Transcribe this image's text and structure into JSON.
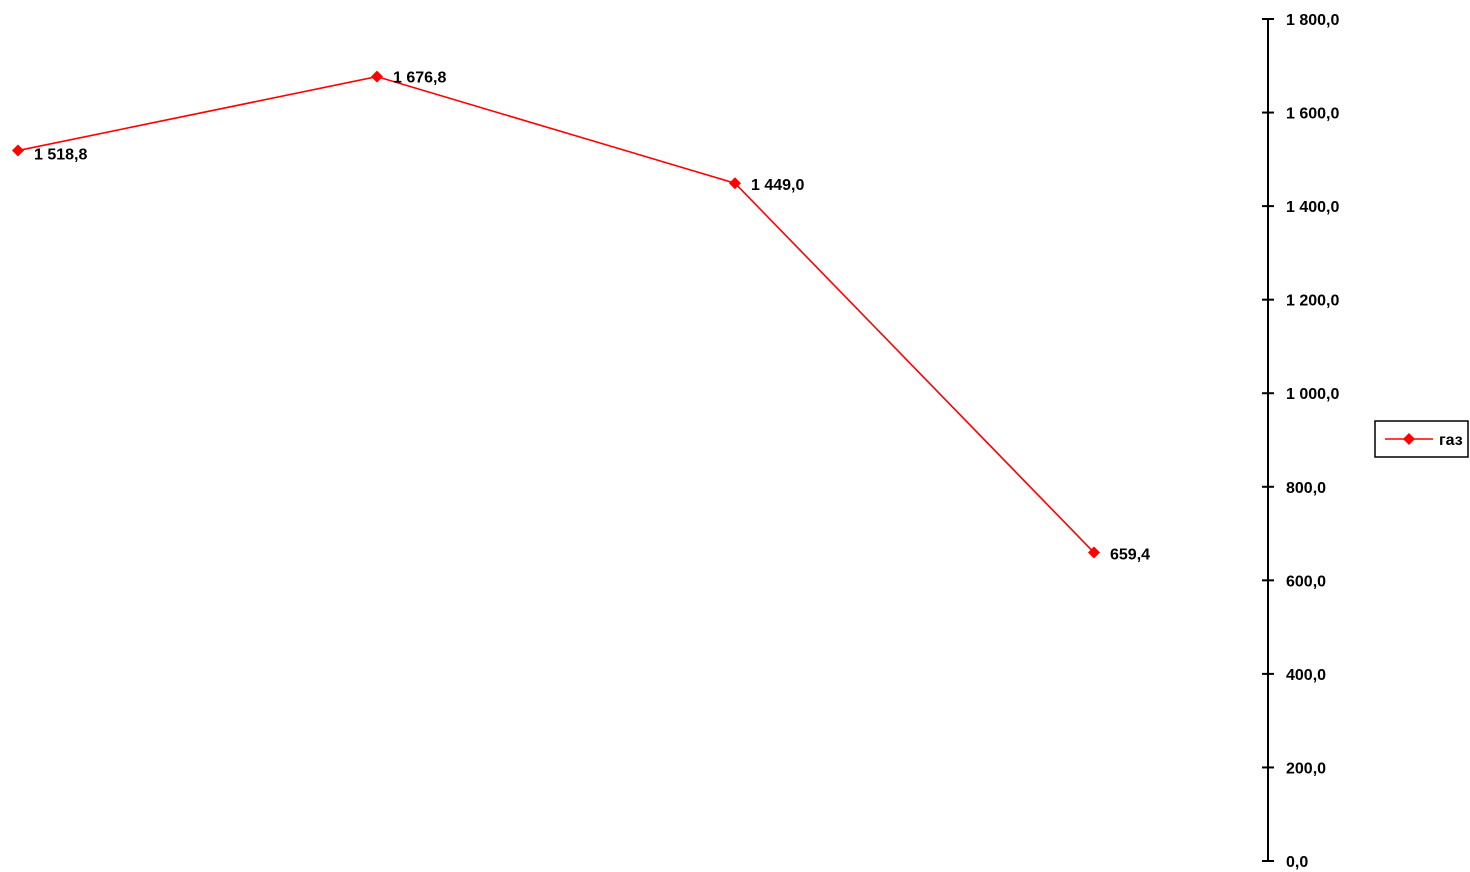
{
  "chart_data": {
    "type": "line",
    "title": "",
    "xlabel": "",
    "ylabel": "",
    "x": [
      1,
      2,
      3,
      4
    ],
    "series": [
      {
        "name": "газ",
        "values": [
          1518.8,
          1676.8,
          1449.0,
          659.4
        ],
        "data_labels": [
          "1 518,8",
          "1 676,8",
          "1 449,0",
          "659,4"
        ]
      }
    ],
    "ylim": [
      0,
      1800
    ],
    "y_ticks": [
      0,
      200,
      400,
      600,
      800,
      1000,
      1200,
      1400,
      1600,
      1800
    ],
    "y_tick_labels": [
      "0,0",
      "200,0",
      "400,0",
      "600,0",
      "800,0",
      "1 000,0",
      "1 200,0",
      "1 400,0",
      "1 600,0",
      "1 800,0"
    ],
    "y_axis_side": "right",
    "grid": false,
    "legend": {
      "position": "right",
      "entries": [
        "газ"
      ]
    },
    "colors": {
      "series": "#ff0000",
      "axis": "#000000"
    },
    "marker": "diamond"
  }
}
